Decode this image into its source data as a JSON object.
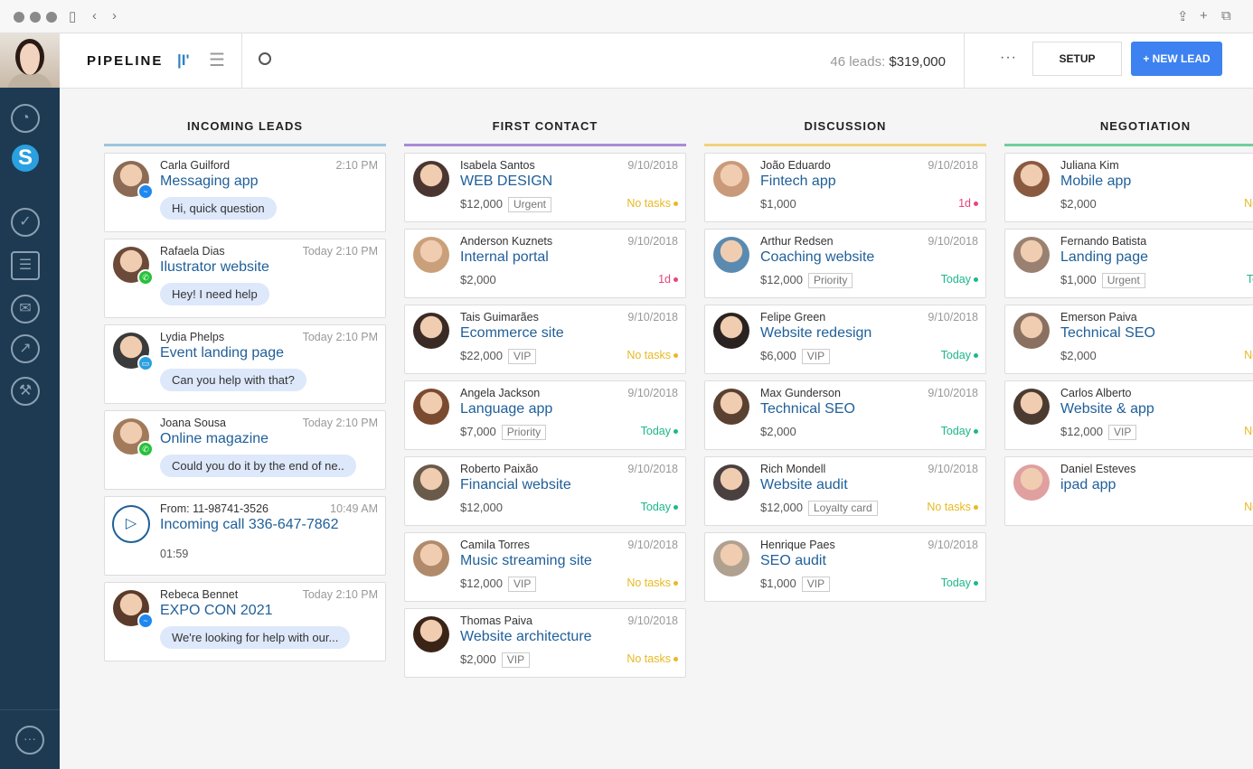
{
  "header": {
    "title": "PIPELINE",
    "summary_prefix": "46 leads:",
    "summary_value": "$319,000",
    "setup_label": "SETUP",
    "new_lead_label": "+ NEW LEAD"
  },
  "colors": {
    "sidebar": "#1e3a52",
    "accent": "#3d82f0",
    "no_tasks": "#e8b923",
    "overdue": "#e8457a",
    "today": "#1db88a"
  },
  "columns": [
    {
      "title": "INCOMING LEADS",
      "color": "#9cc5de",
      "cards": [
        {
          "name": "Carla Guilford",
          "time": "2:10 PM",
          "lead": "Messaging app",
          "message": "Hi, quick question",
          "channel": "messenger",
          "avatar": "#8b6b55"
        },
        {
          "name": "Rafaela Dias",
          "time": "Today 2:10 PM",
          "lead": "Ilustrator website",
          "message": "Hey! I need help",
          "channel": "whatsapp",
          "avatar": "#6b4a3a"
        },
        {
          "name": "Lydia Phelps",
          "time": "Today 2:10 PM",
          "lead": "Event landing page",
          "message": "Can you help with that?",
          "channel": "sms",
          "avatar": "#3a3a3a"
        },
        {
          "name": "Joana Sousa",
          "time": "Today 2:10 PM",
          "lead": "Online magazine",
          "message": "Could you do it by the end of ne..",
          "channel": "whatsapp",
          "avatar": "#a07a5a"
        },
        {
          "name": "From: 11-98741-3526",
          "time": "10:49 AM",
          "lead": "Incoming call 336-647-7862",
          "duration": "01:59",
          "channel": "call"
        },
        {
          "name": "Rebeca Bennet",
          "time": "Today 2:10 PM",
          "lead": "EXPO CON 2021",
          "message": "We're looking for help with our...",
          "channel": "messenger",
          "avatar": "#5a3a2a"
        }
      ]
    },
    {
      "title": "FIRST CONTACT",
      "color": "#a98bd6",
      "cards": [
        {
          "name": "Isabela Santos",
          "time": "9/10/2018",
          "lead": "WEB DESIGN",
          "value": "$12,000",
          "tag": "Urgent",
          "status": "No tasks",
          "status_type": "no_tasks",
          "avatar": "#4a3530"
        },
        {
          "name": "Anderson Kuznets",
          "time": "9/10/2018",
          "lead": "Internal portal",
          "value": "$2,000",
          "status": "1d",
          "status_type": "overdue",
          "avatar": "#c9a07a"
        },
        {
          "name": "Tais Guimarães",
          "time": "9/10/2018",
          "lead": "Ecommerce site",
          "value": "$22,000",
          "tag": "VIP",
          "status": "No tasks",
          "status_type": "no_tasks",
          "avatar": "#3a2a25"
        },
        {
          "name": "Angela Jackson",
          "time": "9/10/2018",
          "lead": "Language app",
          "value": "$7,000",
          "tag": "Priority",
          "status": "Today",
          "status_type": "today",
          "avatar": "#7a4a30"
        },
        {
          "name": "Roberto Paixão",
          "time": "9/10/2018",
          "lead": "Financial website",
          "value": "$12,000",
          "status": "Today",
          "status_type": "today",
          "avatar": "#6a5a4a"
        },
        {
          "name": "Camila Torres",
          "time": "9/10/2018",
          "lead": "Music streaming site",
          "value": "$12,000",
          "tag": "VIP",
          "status": "No tasks",
          "status_type": "no_tasks",
          "avatar": "#b08a6a"
        },
        {
          "name": "Thomas Paiva",
          "time": "9/10/2018",
          "lead": "Website architecture",
          "value": "$2,000",
          "tag": "VIP",
          "status": "No tasks",
          "status_type": "no_tasks",
          "avatar": "#3a2418"
        }
      ]
    },
    {
      "title": "DISCUSSION",
      "color": "#f0d27a",
      "cards": [
        {
          "name": "João Eduardo",
          "time": "9/10/2018",
          "lead": "Fintech app",
          "value": "$1,000",
          "status": "1d",
          "status_type": "overdue",
          "avatar": "#c99a7a"
        },
        {
          "name": "Arthur Redsen",
          "time": "9/10/2018",
          "lead": "Coaching website",
          "value": "$12,000",
          "tag": "Priority",
          "status": "Today",
          "status_type": "today",
          "avatar": "#5a8ab0"
        },
        {
          "name": "Felipe Green",
          "time": "9/10/2018",
          "lead": "Website redesign",
          "value": "$6,000",
          "tag": "VIP",
          "status": "Today",
          "status_type": "today",
          "avatar": "#2a2220"
        },
        {
          "name": "Max Gunderson",
          "time": "9/10/2018",
          "lead": "Technical SEO",
          "value": "$2,000",
          "status": "Today",
          "status_type": "today",
          "avatar": "#5a4030"
        },
        {
          "name": "Rich Mondell",
          "time": "9/10/2018",
          "lead": "Website audit",
          "value": "$12,000",
          "tag": "Loyalty card",
          "status": "No tasks",
          "status_type": "no_tasks",
          "avatar": "#4a4040"
        },
        {
          "name": "Henrique Paes",
          "time": "9/10/2018",
          "lead": "SEO audit",
          "value": "$1,000",
          "tag": "VIP",
          "status": "Today",
          "status_type": "today",
          "avatar": "#b0a090"
        }
      ]
    },
    {
      "title": "NEGOTIATION",
      "color": "#6fcf9f",
      "cards": [
        {
          "name": "Juliana Kim",
          "time": "9/10/",
          "lead": "Mobile app",
          "value": "$2,000",
          "status": "No ta",
          "status_type": "no_tasks",
          "avatar": "#8a5a40"
        },
        {
          "name": "Fernando Batista",
          "time": "9/10/",
          "lead": "Landing page",
          "value": "$1,000",
          "tag": "Urgent",
          "status": "Toda",
          "status_type": "today",
          "avatar": "#9a8070"
        },
        {
          "name": "Emerson Paiva",
          "time": "9/10/",
          "lead": "Technical SEO",
          "value": "$2,000",
          "status": "No ta",
          "status_type": "no_tasks",
          "avatar": "#8a7060"
        },
        {
          "name": "Carlos Alberto",
          "time": "9/10/",
          "lead": "Website & app",
          "value": "$12,000",
          "tag": "VIP",
          "status": "No ta",
          "status_type": "no_tasks",
          "avatar": "#4a3a30"
        },
        {
          "name": "Daniel Esteves",
          "time": "9/10/",
          "lead": "ipad app",
          "status": "No ta",
          "status_type": "no_tasks",
          "avatar": "#e0a0a0"
        }
      ]
    }
  ]
}
